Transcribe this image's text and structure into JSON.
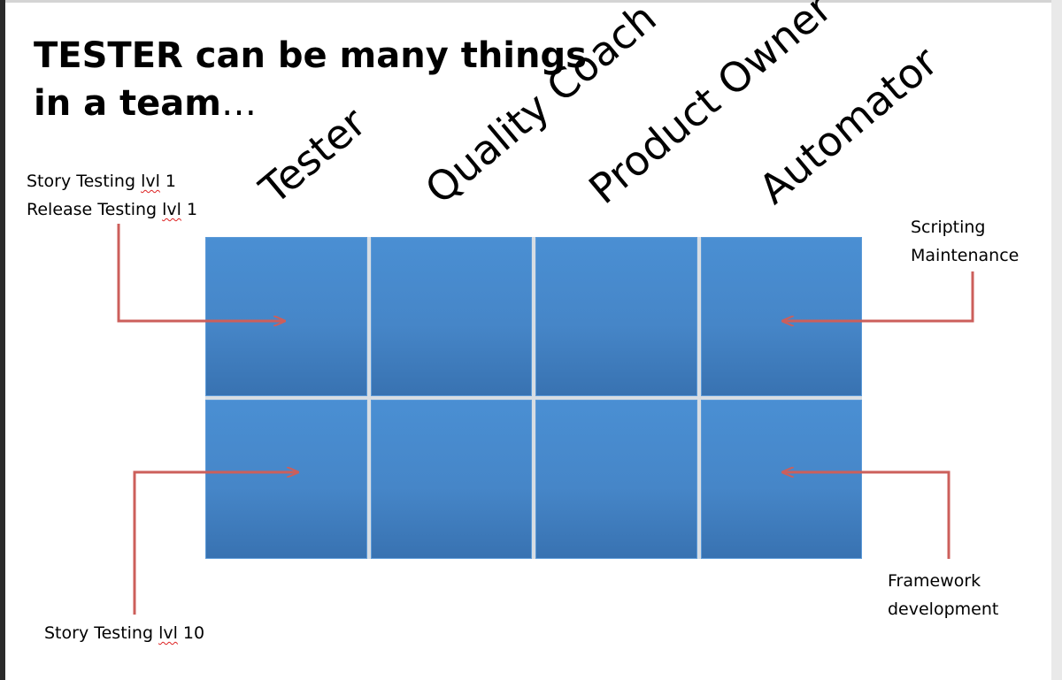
{
  "title": {
    "line1": "TESTER can be many things",
    "line2": "in a team",
    "ellipsis": "…"
  },
  "roles": [
    "Tester",
    "Quality Coach",
    "Product Owner",
    "Automator"
  ],
  "notes": {
    "top_left": {
      "line1_a": "Story Testing ",
      "line1_b": "lvl",
      "line1_c": " 1",
      "line2_a": "Release Testing ",
      "line2_b": "lvl",
      "line2_c": " 1"
    },
    "bottom_left": {
      "a": "Story Testing ",
      "b": "lvl",
      "c": " 10"
    },
    "top_right": {
      "line1": "Scripting",
      "line2": "Maintenance"
    },
    "bottom_right": {
      "line1": "Framework",
      "line2": "development"
    }
  },
  "colors": {
    "cell_blue": "#4686c8",
    "arrow_red": "#cc5f5b"
  }
}
